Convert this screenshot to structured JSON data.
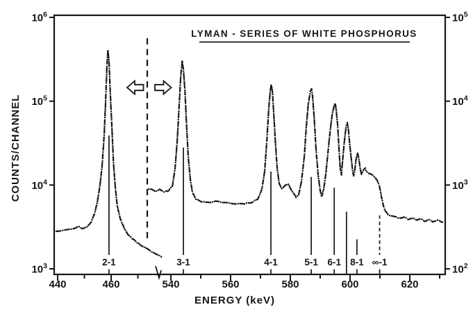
{
  "colors": {
    "ink": "#151515",
    "paper": "#ffffff"
  },
  "chart_data": {
    "type": "line",
    "style": "hand-drawn dot-dash spectrum, logarithmic y, broken x-axis with two count scales",
    "title": "LYMAN - SERIES OF WHITE PHOSPHORUS",
    "xlabel": "ENERGY (keV)",
    "ylabel": "COUNTS/CHANNEL",
    "x_axis": {
      "unit": "keV",
      "break_between_keV": [
        478,
        536
      ],
      "major_ticks_left": [
        440,
        460
      ],
      "minor_ticks_left": [
        450,
        470
      ],
      "major_ticks_right": [
        540,
        560,
        580,
        600,
        620
      ],
      "minor_ticks_right": [
        550,
        570,
        590,
        610,
        630
      ]
    },
    "y_axis_left": {
      "scale": "log",
      "tick_exponents": [
        6,
        5,
        4,
        3
      ],
      "tick_labels": [
        "10^6",
        "10^5",
        "10^4",
        "10^3"
      ],
      "applies_to": "left spectrum segment (open arrow points left)"
    },
    "y_axis_right": {
      "scale": "log",
      "tick_exponents": [
        5,
        4,
        3,
        2
      ],
      "tick_labels": [
        "10^5",
        "10^4",
        "10^3",
        "10^2"
      ],
      "applies_to": "right spectrum segment (open arrow points right)"
    },
    "axis_break": {
      "dashed_line_keV_on_left_scale": 473.5,
      "zigzag_on_axis": true
    },
    "peaks": [
      {
        "label": "2-1",
        "energy_keV": 459,
        "counts": 408000,
        "scale": "left"
      },
      {
        "label": "3-1",
        "energy_keV": 544,
        "counts": 30200,
        "scale": "right"
      },
      {
        "label": "4-1",
        "energy_keV": 573.5,
        "counts": 15700,
        "scale": "right"
      },
      {
        "label": "5-1",
        "energy_keV": 587,
        "counts": 14000,
        "scale": "right"
      },
      {
        "label": "6-1",
        "energy_keV": 595,
        "counts": 9500,
        "scale": "right"
      },
      {
        "label": "7-1 (unlabeled line)",
        "energy_keV": 599,
        "counts": 5450,
        "scale": "right"
      },
      {
        "label": "8-1",
        "energy_keV": 602.5,
        "counts": 2400,
        "scale": "right"
      },
      {
        "label": "∞-1 (series limit, dashed)",
        "energy_keV": 610,
        "counts": null,
        "scale": "right"
      }
    ],
    "markers": [
      {
        "label": "2-1",
        "keV": 459.2,
        "scale": "left",
        "top_counts": 39000,
        "dashed": false,
        "to_axis": false,
        "tick_below": true
      },
      {
        "label": "3-1",
        "keV": 544.2,
        "scale": "right",
        "top_counts": 2800,
        "dashed": false,
        "to_axis": false,
        "tick_below": true
      },
      {
        "label": "4-1",
        "keV": 573.5,
        "scale": "right",
        "top_counts": 1450,
        "dashed": false,
        "to_axis": false,
        "tick_below": true
      },
      {
        "label": "5-1",
        "keV": 587.0,
        "scale": "right",
        "top_counts": 1250,
        "dashed": false,
        "to_axis": false,
        "tick_below": true
      },
      {
        "label": "6-1",
        "keV": 594.7,
        "scale": "right",
        "top_counts": 930,
        "dashed": false,
        "to_axis": false,
        "tick_below": true
      },
      {
        "label": "",
        "keV": 598.8,
        "scale": "right",
        "top_counts": 480,
        "dashed": false,
        "to_axis": true,
        "tick_below": false
      },
      {
        "label": "8-1",
        "keV": 602.3,
        "scale": "right",
        "top_counts": 225,
        "dashed": false,
        "to_axis": false,
        "tick_below": true
      },
      {
        "label": "∞-1",
        "keV": 609.9,
        "scale": "right",
        "top_counts": 435,
        "dashed": true,
        "to_axis": false,
        "tick_below": true
      }
    ],
    "series": [
      {
        "name": "left-segment",
        "scale": "left",
        "points": [
          [
            438.7,
            2800
          ],
          [
            441.0,
            2850
          ],
          [
            443.1,
            2920
          ],
          [
            445.7,
            2980
          ],
          [
            447.8,
            3210
          ],
          [
            449.1,
            3040
          ],
          [
            450.9,
            3150
          ],
          [
            452.5,
            3610
          ],
          [
            453.8,
            4540
          ],
          [
            454.8,
            6170
          ],
          [
            455.8,
            9750
          ],
          [
            456.6,
            16600
          ],
          [
            457.4,
            39300
          ],
          [
            457.9,
            93000
          ],
          [
            458.4,
            250000
          ],
          [
            458.8,
            408000
          ],
          [
            459.2,
            300000
          ],
          [
            459.7,
            123000
          ],
          [
            460.3,
            47600
          ],
          [
            460.9,
            17700
          ],
          [
            461.6,
            9100
          ],
          [
            462.3,
            5640
          ],
          [
            463.4,
            3990
          ],
          [
            464.7,
            3150
          ],
          [
            466.2,
            2600
          ],
          [
            468.1,
            2270
          ],
          [
            470.1,
            2020
          ],
          [
            472.5,
            1800
          ],
          [
            474.8,
            1630
          ],
          [
            477.1,
            1490
          ],
          [
            478.9,
            1380
          ]
        ]
      },
      {
        "name": "right-segment",
        "scale": "right",
        "points": [
          [
            532.6,
            890
          ],
          [
            533.5,
            900
          ],
          [
            534.9,
            838
          ],
          [
            536.3,
            885
          ],
          [
            537.7,
            823
          ],
          [
            539.1,
            855
          ],
          [
            540.5,
            975
          ],
          [
            541.4,
            1570
          ],
          [
            542.1,
            3230
          ],
          [
            542.8,
            9200
          ],
          [
            543.3,
            19800
          ],
          [
            543.8,
            30200
          ],
          [
            544.2,
            23900
          ],
          [
            544.7,
            13500
          ],
          [
            545.2,
            5700
          ],
          [
            545.8,
            2210
          ],
          [
            546.5,
            1180
          ],
          [
            547.2,
            823
          ],
          [
            548.4,
            680
          ],
          [
            550.2,
            630
          ],
          [
            552.6,
            618
          ],
          [
            555.3,
            642
          ],
          [
            558.1,
            618
          ],
          [
            560.9,
            595
          ],
          [
            564.2,
            595
          ],
          [
            567.0,
            618
          ],
          [
            569.1,
            680
          ],
          [
            570.5,
            900
          ],
          [
            571.4,
            1450
          ],
          [
            572.1,
            3230
          ],
          [
            572.8,
            8400
          ],
          [
            573.3,
            13500
          ],
          [
            573.6,
            15700
          ],
          [
            574.0,
            13000
          ],
          [
            574.4,
            7600
          ],
          [
            575.0,
            3230
          ],
          [
            575.6,
            1570
          ],
          [
            576.3,
            1030
          ],
          [
            577.2,
            900
          ],
          [
            578.4,
            990
          ],
          [
            579.3,
            1030
          ],
          [
            580.5,
            855
          ],
          [
            581.9,
            715
          ],
          [
            582.8,
            770
          ],
          [
            583.7,
            1090
          ],
          [
            584.7,
            2210
          ],
          [
            585.3,
            4750
          ],
          [
            586.0,
            9200
          ],
          [
            586.7,
            13000
          ],
          [
            587.1,
            14000
          ],
          [
            587.4,
            12000
          ],
          [
            588.0,
            6300
          ],
          [
            588.6,
            2680
          ],
          [
            589.3,
            1330
          ],
          [
            590.0,
            855
          ],
          [
            590.5,
            730
          ],
          [
            591.2,
            900
          ],
          [
            591.9,
            1370
          ],
          [
            592.6,
            2450
          ],
          [
            593.3,
            4300
          ],
          [
            594.0,
            6900
          ],
          [
            594.7,
            9000
          ],
          [
            595.0,
            9500
          ],
          [
            595.3,
            8150
          ],
          [
            595.8,
            5400
          ],
          [
            596.3,
            2680
          ],
          [
            596.7,
            1570
          ],
          [
            597.1,
            1330
          ],
          [
            597.4,
            1780
          ],
          [
            597.9,
            2830
          ],
          [
            598.4,
            4150
          ],
          [
            598.8,
            5240
          ],
          [
            599.1,
            5450
          ],
          [
            599.4,
            4700
          ],
          [
            599.7,
            3600
          ],
          [
            600.3,
            2210
          ],
          [
            600.9,
            1450
          ],
          [
            601.2,
            1300
          ],
          [
            601.6,
            1520
          ],
          [
            602.0,
            2020
          ],
          [
            602.5,
            2400
          ],
          [
            602.9,
            2080
          ],
          [
            603.4,
            1570
          ],
          [
            603.8,
            1340
          ],
          [
            604.4,
            1500
          ],
          [
            605.0,
            1570
          ],
          [
            605.6,
            1450
          ],
          [
            606.2,
            1380
          ],
          [
            607.2,
            1340
          ],
          [
            608.1,
            1260
          ],
          [
            609.0,
            1140
          ],
          [
            609.8,
            980
          ],
          [
            610.5,
            730
          ],
          [
            611.2,
            560
          ],
          [
            611.9,
            480
          ],
          [
            612.8,
            440
          ],
          [
            614.0,
            425
          ],
          [
            615.3,
            415
          ],
          [
            616.7,
            400
          ],
          [
            618.1,
            415
          ],
          [
            619.5,
            390
          ],
          [
            620.9,
            405
          ],
          [
            622.3,
            380
          ],
          [
            623.7,
            395
          ],
          [
            625.1,
            370
          ],
          [
            626.5,
            385
          ],
          [
            627.9,
            365
          ],
          [
            629.3,
            380
          ],
          [
            630.7,
            365
          ]
        ]
      }
    ]
  }
}
